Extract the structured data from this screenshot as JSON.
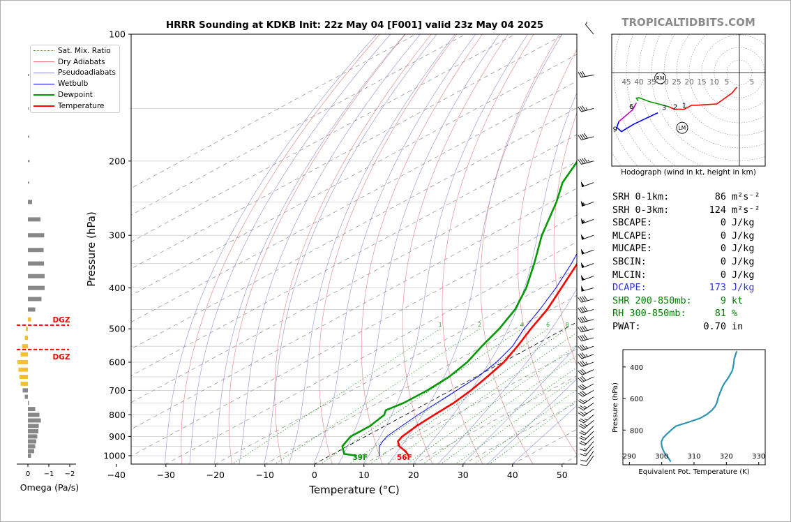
{
  "title": "HRRR Sounding at KDKB Init: 22z May 04 [F001] valid 23z May 04 2025",
  "brand": "TROPICALTIDBITS.COM",
  "legend": [
    {
      "label": "Sat. Mix. Ratio",
      "color": "#2ca02c",
      "style": "dotted"
    },
    {
      "label": "Dry Adiabats",
      "color": "#e07070",
      "style": "thin"
    },
    {
      "label": "Pseudoadiabats",
      "color": "#8a8ad0",
      "style": "thin"
    },
    {
      "label": "Wetbulb",
      "color": "#0000ff",
      "style": "solid"
    },
    {
      "label": "Dewpoint",
      "color": "#009900",
      "style": "thick"
    },
    {
      "label": "Temperature",
      "color": "#ff0000",
      "style": "thick"
    }
  ],
  "skewt": {
    "xlabel": "Temperature (°C)",
    "ylabel": "Pressure (hPa)",
    "xticks": [
      -40,
      -30,
      -20,
      -10,
      0,
      10,
      20,
      30,
      40,
      50
    ],
    "pressure_ticks": [
      100,
      200,
      300,
      400,
      500,
      600,
      700,
      800,
      900,
      1000
    ],
    "mixing_ratio_labels": [
      "1",
      "2",
      "4",
      "6",
      "8",
      "10",
      "13",
      "16",
      "20",
      "24",
      "30",
      "36"
    ],
    "surface_temp_label": "56F",
    "surface_dew_label": "39F"
  },
  "chart_data": [
    {
      "type": "line",
      "title": "HRRR Sounding at KDKB Init: 22z May 04 [F001] valid 23z May 04 2025",
      "xlabel": "Temperature (°C)",
      "ylabel": "Pressure (hPa)",
      "xlim": [
        -40,
        50
      ],
      "ylim": [
        1050,
        100
      ],
      "series": [
        {
          "name": "Temperature",
          "color": "#ff0000",
          "points": [
            [
              1000,
              15.9
            ],
            [
              975,
              13.5
            ],
            [
              950,
              10.5
            ],
            [
              925,
              8.4
            ],
            [
              900,
              7.4
            ],
            [
              850,
              6.4
            ],
            [
              800,
              5.8
            ],
            [
              750,
              5.3
            ],
            [
              700,
              4.1
            ],
            [
              650,
              2.3
            ],
            [
              600,
              0.2
            ],
            [
              550,
              -3.0
            ],
            [
              500,
              -6.8
            ],
            [
              450,
              -10.7
            ],
            [
              400,
              -15.9
            ],
            [
              350,
              -21.8
            ],
            [
              300,
              -29.3
            ],
            [
              250,
              -37.4
            ],
            [
              225,
              -40.6
            ],
            [
              200,
              -39.4
            ],
            [
              170,
              -36.0
            ],
            [
              150,
              -39.0
            ],
            [
              125,
              -45.7
            ],
            [
              100,
              -53.5
            ]
          ]
        },
        {
          "name": "Dewpoint",
          "color": "#009900",
          "points": [
            [
              1000,
              5.4
            ],
            [
              990,
              2.2
            ],
            [
              950,
              -1.0
            ],
            [
              925,
              -2.0
            ],
            [
              900,
              -3.0
            ],
            [
              850,
              -3.0
            ],
            [
              800,
              -4.3
            ],
            [
              780,
              -5.7
            ],
            [
              750,
              -4.8
            ],
            [
              700,
              -4.7
            ],
            [
              650,
              -5.4
            ],
            [
              600,
              -7.2
            ],
            [
              550,
              -10.2
            ],
            [
              500,
              -13.2
            ],
            [
              450,
              -17.2
            ],
            [
              400,
              -23.0
            ],
            [
              350,
              -30.5
            ],
            [
              300,
              -39.5
            ],
            [
              250,
              -49.0
            ],
            [
              225,
              -55.0
            ],
            [
              200,
              -60.0
            ],
            [
              175,
              -65.0
            ],
            [
              150,
              -70.0
            ],
            [
              125,
              -74.0
            ],
            [
              100,
              -78.0
            ]
          ]
        },
        {
          "name": "Wetbulb",
          "color": "#0000ff",
          "points": [
            [
              1000,
              10.0
            ],
            [
              975,
              8.2
            ],
            [
              950,
              6.5
            ],
            [
              925,
              5.3
            ],
            [
              900,
              4.3
            ],
            [
              850,
              3.4
            ],
            [
              800,
              2.5
            ],
            [
              750,
              1.9
            ],
            [
              700,
              1.2
            ],
            [
              650,
              0.4
            ],
            [
              600,
              -1.3
            ],
            [
              550,
              -4.0
            ],
            [
              500,
              -8.2
            ],
            [
              450,
              -12.2
            ],
            [
              400,
              -17.0
            ],
            [
              350,
              -23.0
            ],
            [
              300,
              -30.3
            ],
            [
              250,
              -37.9
            ],
            [
              225,
              -41.0
            ],
            [
              200,
              -40.6
            ],
            [
              170,
              -37.0
            ],
            [
              150,
              -40.3
            ],
            [
              125,
              -46.8
            ],
            [
              100,
              -55.0
            ]
          ]
        }
      ]
    },
    {
      "type": "bar",
      "xlabel": "Omega (Pa/s)",
      "xticks": [
        0,
        -1,
        -2
      ],
      "xlim": [
        0.5,
        -2.5
      ],
      "label_note": "DGZ",
      "dgz_top_hpa": 490,
      "dgz_bottom_hpa": 560,
      "levels": [
        125,
        150,
        175,
        200,
        225,
        250,
        275,
        300,
        325,
        350,
        375,
        400,
        425,
        450,
        475,
        500,
        525,
        550,
        575,
        600,
        625,
        650,
        675,
        700,
        725,
        750,
        775,
        800,
        825,
        850,
        875,
        900,
        925,
        950,
        975,
        1000
      ],
      "values": [
        -0.02,
        -0.05,
        -0.06,
        -0.08,
        -0.06,
        -0.2,
        -0.6,
        -0.78,
        -0.75,
        -0.77,
        -0.8,
        -0.8,
        -0.65,
        -0.35,
        -0.15,
        0.1,
        0.15,
        0.28,
        0.35,
        0.5,
        0.45,
        0.4,
        0.35,
        0.25,
        0.15,
        -0.05,
        -0.35,
        -0.55,
        -0.62,
        -0.52,
        -0.5,
        -0.45,
        -0.4,
        -0.35,
        -0.3,
        -0.15
      ]
    },
    {
      "type": "line",
      "xlabel": "Equivalent Pot. Temperature (K)",
      "ylabel": "Pressure (hPa)",
      "xlim": [
        288,
        332
      ],
      "ylim": [
        1020,
        290
      ],
      "xticks": [
        290,
        300,
        310,
        320,
        330
      ],
      "yticks": [
        400,
        600,
        800
      ],
      "series": [
        {
          "name": "Theta-e",
          "color": "#2a93b5",
          "points": [
            [
              1000,
              302.8
            ],
            [
              975,
              302.0
            ],
            [
              950,
              301.0
            ],
            [
              925,
              300.4
            ],
            [
              900,
              300.0
            ],
            [
              875,
              299.9
            ],
            [
              850,
              300.4
            ],
            [
              825,
              301.6
            ],
            [
              800,
              302.9
            ],
            [
              775,
              304.4
            ],
            [
              750,
              308.2
            ],
            [
              725,
              311.9
            ],
            [
              700,
              314.0
            ],
            [
              675,
              315.5
            ],
            [
              650,
              316.5
            ],
            [
              625,
              317.1
            ],
            [
              600,
              317.4
            ],
            [
              575,
              317.8
            ],
            [
              550,
              318.3
            ],
            [
              525,
              318.8
            ],
            [
              500,
              319.5
            ],
            [
              475,
              320.4
            ],
            [
              450,
              321.1
            ],
            [
              425,
              321.8
            ],
            [
              400,
              322.1
            ],
            [
              375,
              322.3
            ],
            [
              350,
              322.4
            ],
            [
              325,
              322.8
            ],
            [
              300,
              323.2
            ]
          ]
        }
      ]
    },
    {
      "type": "line",
      "title": "Hodograph (wind in kt, height in km)",
      "xlim": [
        -51,
        10
      ],
      "ylim": [
        -26,
        23
      ],
      "ring_labels": [
        "45",
        "40",
        "35",
        "30",
        "25",
        "20",
        "15",
        "10",
        "5",
        "5"
      ],
      "height_labels": [
        "1",
        "2",
        "3",
        "6",
        "9"
      ],
      "markers": [
        {
          "label": "RM",
          "u": -31.5,
          "v": -2.2
        },
        {
          "label": "LM",
          "u": -22.8,
          "v": -22.0
        }
      ],
      "series": [
        {
          "name": "0-3 km",
          "color": "#ff0000",
          "points": [
            [
              -1,
              -5.8
            ],
            [
              -3,
              -8.2
            ],
            [
              -9,
              -12.5
            ],
            [
              -14,
              -12.8
            ],
            [
              -17,
              -13.0
            ],
            [
              -19,
              -13.0
            ],
            [
              -22,
              -14.6
            ],
            [
              -26,
              -14.6
            ],
            [
              -28,
              -13.6
            ]
          ]
        },
        {
          "name": "3-6 km",
          "color": "#009900",
          "points": [
            [
              -28,
              -13.6
            ],
            [
              -36,
              -11.5
            ],
            [
              -40,
              -10.0
            ],
            [
              -41,
              -10.2
            ],
            [
              -40.3,
              -11.3
            ]
          ]
        },
        {
          "name": "6-9 km",
          "color": "#c000c0",
          "points": [
            [
              -41,
              -12.0
            ],
            [
              -42.5,
              -14.8
            ],
            [
              -48,
              -19.5
            ]
          ]
        },
        {
          "name": "9-12 km",
          "color": "#0000ff",
          "points": [
            [
              -48,
              -19.5
            ],
            [
              -48.8,
              -21.8
            ],
            [
              -47,
              -23.5
            ],
            [
              -42,
              -20.5
            ],
            [
              -32.5,
              -16.0
            ]
          ]
        }
      ]
    }
  ],
  "hodograph": {
    "caption": "Hodograph (wind in kt, height in km)",
    "rm_label": "RM",
    "lm_label": "LM"
  },
  "params": [
    {
      "label": "SRH 0-1km:",
      "value": "86",
      "unit": "m²s⁻²",
      "color": "#000000"
    },
    {
      "label": "SRH 0-3km:",
      "value": "124",
      "unit": "m²s⁻²",
      "color": "#000000"
    },
    {
      "label": "SBCAPE:",
      "value": "0",
      "unit": "J/kg",
      "color": "#000000"
    },
    {
      "label": "MLCAPE:",
      "value": "0",
      "unit": "J/kg",
      "color": "#000000"
    },
    {
      "label": "MUCAPE:",
      "value": "0",
      "unit": "J/kg",
      "color": "#000000"
    },
    {
      "label": "SBCIN:",
      "value": "0",
      "unit": "J/kg",
      "color": "#000000"
    },
    {
      "label": "MLCIN:",
      "value": "0",
      "unit": "J/kg",
      "color": "#000000"
    },
    {
      "label": "DCAPE:",
      "value": "173",
      "unit": "J/kg",
      "color": "#3333dd"
    },
    {
      "label": "SHR 200-850mb:",
      "value": "9",
      "unit": "kt",
      "color": "#008000"
    },
    {
      "label": "RH 300-850mb:",
      "value": "81",
      "unit": "%",
      "color": "#008000"
    },
    {
      "label": "PWAT:",
      "value": "0.70",
      "unit": "in",
      "color": "#000000"
    }
  ],
  "barbs": [
    {
      "p": 100,
      "dir": 320,
      "kt": 5
    },
    {
      "p": 125,
      "dir": 260,
      "kt": 28
    },
    {
      "p": 150,
      "dir": 255,
      "kt": 33
    },
    {
      "p": 175,
      "dir": 255,
      "kt": 38
    },
    {
      "p": 200,
      "dir": 255,
      "kt": 43
    },
    {
      "p": 225,
      "dir": 250,
      "kt": 50
    },
    {
      "p": 250,
      "dir": 250,
      "kt": 55
    },
    {
      "p": 275,
      "dir": 250,
      "kt": 55
    },
    {
      "p": 300,
      "dir": 250,
      "kt": 50
    },
    {
      "p": 325,
      "dir": 250,
      "kt": 50
    },
    {
      "p": 350,
      "dir": 250,
      "kt": 50
    },
    {
      "p": 375,
      "dir": 250,
      "kt": 50
    },
    {
      "p": 400,
      "dir": 255,
      "kt": 50
    },
    {
      "p": 425,
      "dir": 255,
      "kt": 40
    },
    {
      "p": 450,
      "dir": 255,
      "kt": 40
    },
    {
      "p": 475,
      "dir": 255,
      "kt": 40
    },
    {
      "p": 500,
      "dir": 255,
      "kt": 40
    },
    {
      "p": 525,
      "dir": 255,
      "kt": 40
    },
    {
      "p": 550,
      "dir": 250,
      "kt": 35
    },
    {
      "p": 575,
      "dir": 250,
      "kt": 35
    },
    {
      "p": 600,
      "dir": 250,
      "kt": 35
    },
    {
      "p": 625,
      "dir": 245,
      "kt": 30
    },
    {
      "p": 650,
      "dir": 245,
      "kt": 30
    },
    {
      "p": 675,
      "dir": 240,
      "kt": 30
    },
    {
      "p": 700,
      "dir": 240,
      "kt": 30
    },
    {
      "p": 725,
      "dir": 235,
      "kt": 25
    },
    {
      "p": 750,
      "dir": 235,
      "kt": 25
    },
    {
      "p": 775,
      "dir": 235,
      "kt": 25
    },
    {
      "p": 800,
      "dir": 230,
      "kt": 25
    },
    {
      "p": 825,
      "dir": 230,
      "kt": 25
    },
    {
      "p": 850,
      "dir": 225,
      "kt": 20
    },
    {
      "p": 875,
      "dir": 225,
      "kt": 20
    },
    {
      "p": 900,
      "dir": 225,
      "kt": 20
    },
    {
      "p": 925,
      "dir": 220,
      "kt": 15
    },
    {
      "p": 950,
      "dir": 220,
      "kt": 15
    },
    {
      "p": 975,
      "dir": 215,
      "kt": 10
    },
    {
      "p": 1000,
      "dir": 215,
      "kt": 10
    }
  ]
}
